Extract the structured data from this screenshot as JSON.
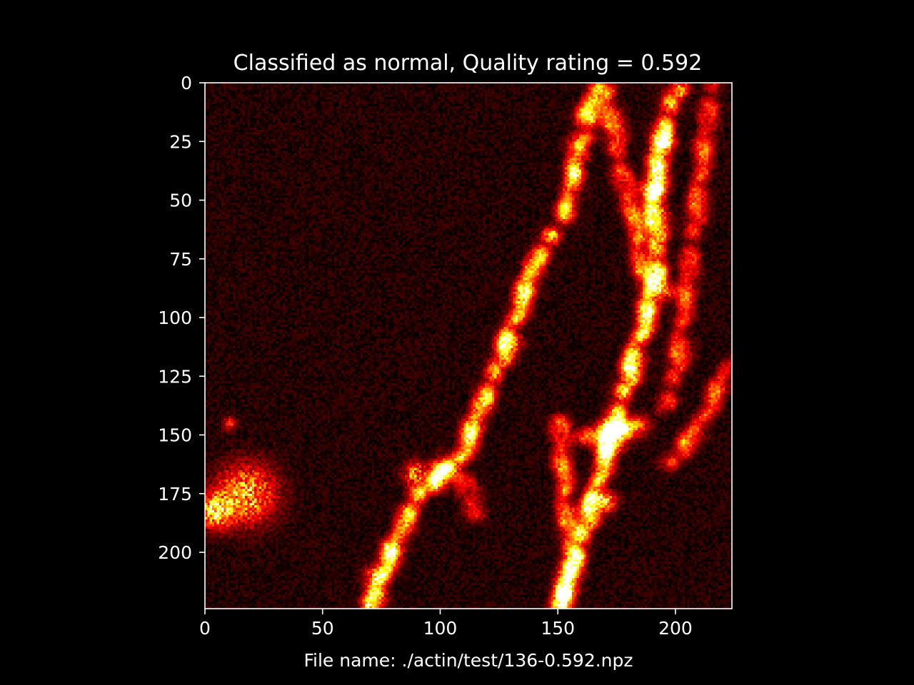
{
  "chart_data": {
    "type": "heatmap",
    "title": "Classified as normal, Quality rating = 0.592",
    "xlabel": "File name: ./actin/test/136-0.592.npz",
    "ylabel": "",
    "xlim": [
      0,
      224
    ],
    "ylim": [
      224,
      0
    ],
    "x_ticks": [
      0,
      50,
      100,
      150,
      200
    ],
    "y_ticks": [
      0,
      25,
      50,
      75,
      100,
      125,
      150,
      175,
      200
    ],
    "colormap": "hot",
    "grid": false,
    "legend": "none",
    "image_shape": [
      224,
      224
    ],
    "background_color": "#000000",
    "axes_color": "#ffffff",
    "text_color": "#ffffff",
    "intensity_features": [
      {
        "kind": "filament",
        "points": [
          [
            165,
            0
          ],
          [
            160,
            25
          ],
          [
            155,
            50
          ],
          [
            138,
            80
          ],
          [
            128,
            110
          ],
          [
            118,
            135
          ],
          [
            108,
            160
          ],
          [
            90,
            175
          ],
          [
            78,
            200
          ],
          [
            70,
            224
          ]
        ],
        "intensity": 0.6
      },
      {
        "kind": "filament",
        "points": [
          [
            200,
            0
          ],
          [
            193,
            25
          ],
          [
            190,
            50
          ],
          [
            192,
            80
          ],
          [
            185,
            105
          ],
          [
            178,
            130
          ],
          [
            172,
            150
          ],
          [
            165,
            175
          ],
          [
            158,
            200
          ],
          [
            150,
            224
          ]
        ],
        "intensity": 0.65
      },
      {
        "kind": "filament",
        "points": [
          [
            170,
            0
          ],
          [
            175,
            30
          ],
          [
            182,
            60
          ],
          [
            188,
            90
          ]
        ],
        "intensity": 0.4
      },
      {
        "kind": "filament",
        "points": [
          [
            215,
            0
          ],
          [
            210,
            40
          ],
          [
            205,
            80
          ],
          [
            200,
            120
          ],
          [
            195,
            140
          ]
        ],
        "intensity": 0.35
      },
      {
        "kind": "filament",
        "points": [
          [
            222,
            120
          ],
          [
            210,
            145
          ],
          [
            195,
            165
          ]
        ],
        "intensity": 0.35
      },
      {
        "kind": "filament",
        "points": [
          [
            150,
            140
          ],
          [
            152,
            170
          ],
          [
            155,
            200
          ],
          [
            150,
            224
          ]
        ],
        "intensity": 0.4
      },
      {
        "kind": "filament",
        "points": [
          [
            160,
            150
          ],
          [
            175,
            148
          ],
          [
            185,
            145
          ]
        ],
        "intensity": 0.45
      },
      {
        "kind": "filament",
        "points": [
          [
            95,
            160
          ],
          [
            110,
            170
          ],
          [
            115,
            185
          ]
        ],
        "intensity": 0.3
      },
      {
        "kind": "blob",
        "center": [
          17,
          175
        ],
        "radius": 12,
        "intensity": 0.85
      },
      {
        "kind": "blob",
        "center": [
          4,
          182
        ],
        "radius": 7,
        "intensity": 0.9
      },
      {
        "kind": "blob",
        "center": [
          89,
          166
        ],
        "radius": 5,
        "intensity": 0.7
      },
      {
        "kind": "blob",
        "center": [
          173,
          150
        ],
        "radius": 6,
        "intensity": 0.8
      },
      {
        "kind": "blob",
        "center": [
          190,
          45
        ],
        "radius": 5,
        "intensity": 0.8
      },
      {
        "kind": "blob",
        "center": [
          195,
          25
        ],
        "radius": 4,
        "intensity": 0.75
      },
      {
        "kind": "blob",
        "center": [
          72,
          210
        ],
        "radius": 5,
        "intensity": 0.55
      },
      {
        "kind": "blob",
        "center": [
          171,
          178
        ],
        "radius": 4,
        "intensity": 0.7
      },
      {
        "kind": "blob",
        "center": [
          195,
          88
        ],
        "radius": 4,
        "intensity": 0.6
      },
      {
        "kind": "blob",
        "center": [
          10,
          145
        ],
        "radius": 3,
        "intensity": 0.45
      }
    ],
    "noise_level": 0.12,
    "seed": 136
  }
}
